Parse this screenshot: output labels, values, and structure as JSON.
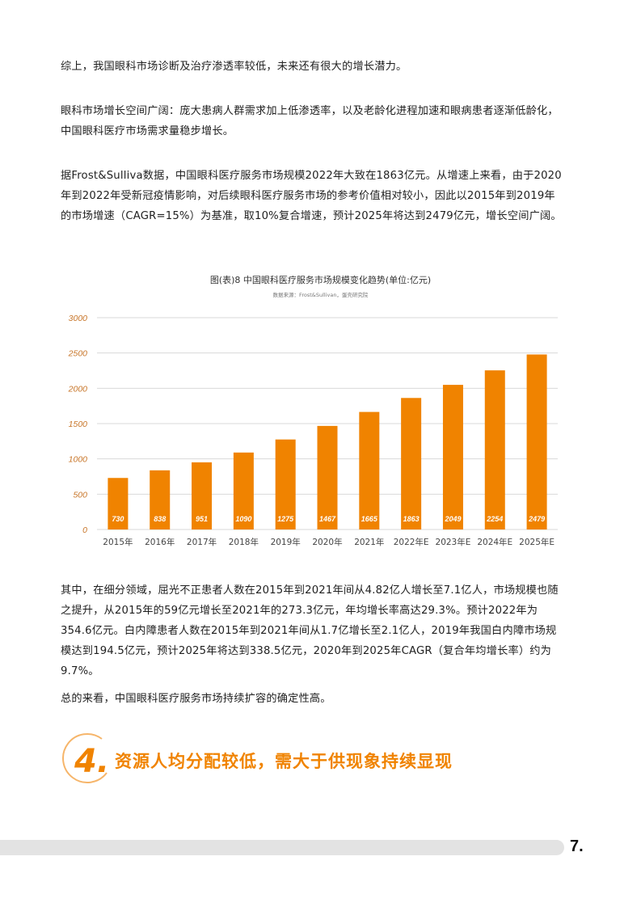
{
  "paragraphs": {
    "p1": "综上，我国眼科市场诊断及治疗渗透率较低，未来还有很大的增长潜力。",
    "p2": "眼科市场增长空间广阔：庞大患病人群需求加上低渗透率，以及老龄化进程加速和眼病患者逐渐低龄化，中国眼科医疗市场需求量稳步增长。",
    "p3": "据Frost&Sulliva数据，中国眼科医疗服务市场规模2022年大致在1863亿元。从增速上来看，由于2020年到2022年受新冠疫情影响，对后续眼科医疗服务市场的参考价值相对较小，因此以2015年到2019年的市场增速（CAGR=15%）为基准，取10%复合增速，预计2025年将达到2479亿元，增长空间广阔。",
    "p4": "其中，在细分领域，屈光不正患者人数在2015年到2021年间从4.82亿人增长至7.1亿人，市场规模也随之提升，从2015年的59亿元增长至2021年的273.3亿元，年均增长率高达29.3%。预计2022年为354.6亿元。白内障患者人数在2015年到2021年间从1.7亿增长至2.1亿人，2019年我国白内障市场规模达到194.5亿元，预计2025年将达到338.5亿元，2020年到2025年CAGR（复合年均增长率）约为9.7%。",
    "p5": "总的来看，中国眼科医疗服务市场持续扩容的确定性高。"
  },
  "chart_data": {
    "type": "bar",
    "title": "图(表)8 中国眼科医疗服务市场规模变化趋势(单位:亿元)",
    "source": "数据来源：Frost&Sullivan，蛋壳研究院",
    "categories": [
      "2015年",
      "2016年",
      "2017年",
      "2018年",
      "2019年",
      "2020年",
      "2021年",
      "2022年E",
      "2023年E",
      "2024年E",
      "2025年E"
    ],
    "values": [
      730,
      838,
      951,
      1090,
      1275,
      1467,
      1665,
      1863,
      2049,
      2254,
      2479
    ],
    "ylim": [
      0,
      3000
    ],
    "yticks": [
      0,
      500,
      1000,
      1500,
      2000,
      2500,
      3000
    ],
    "grid": true,
    "bar_color": "#f08300",
    "label_color": "#ffffff",
    "tick_color": "#c8762a"
  },
  "section": {
    "number": "4.",
    "title": "资源人均分配较低，需大于供现象持续显现",
    "accent": "#f08300"
  },
  "footer": {
    "page_number": "7."
  }
}
